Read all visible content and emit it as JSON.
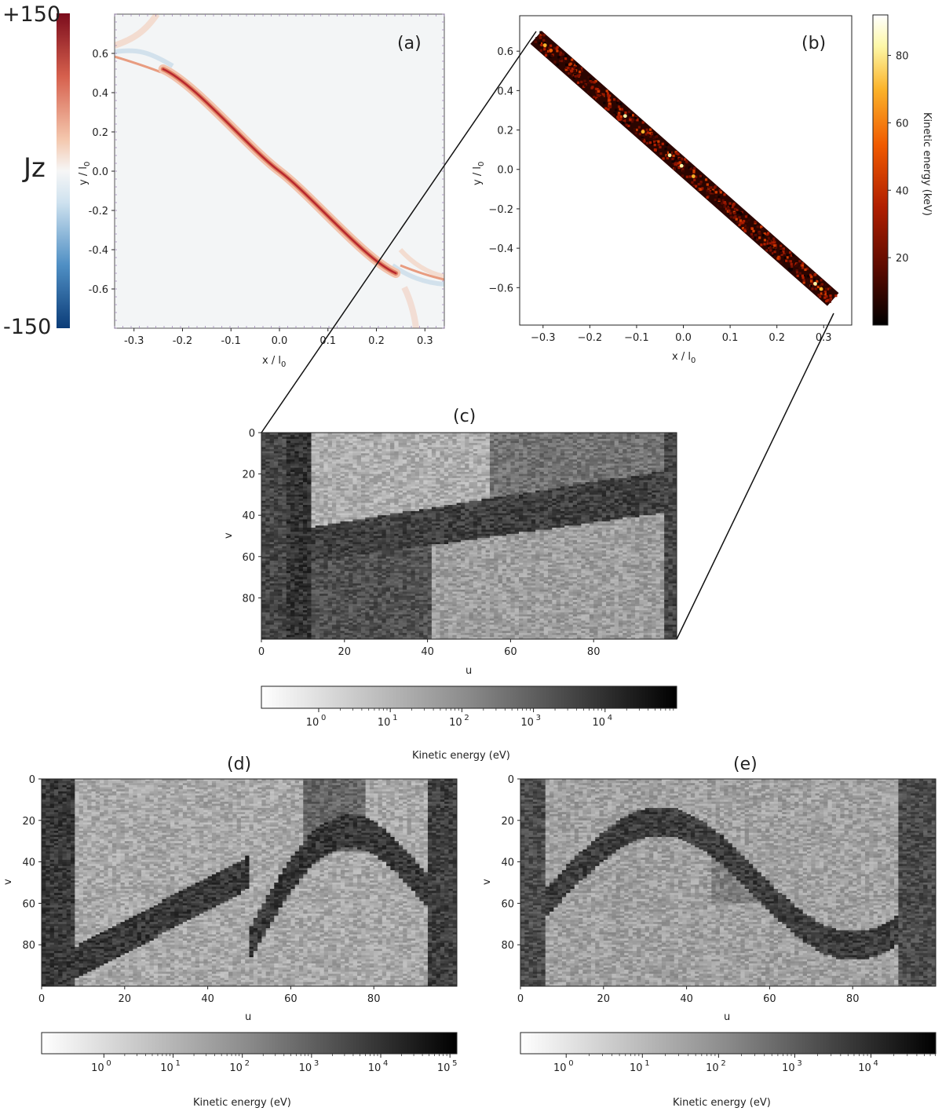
{
  "chart_data": [
    {
      "id": "a",
      "type": "heatmap",
      "panel_label": "(a)",
      "xlabel": "x / l",
      "xlabel_sub": "0",
      "ylabel": "y / l",
      "ylabel_sub": "0",
      "xlim": [
        -0.34,
        0.34
      ],
      "ylim": [
        -0.8,
        0.8
      ],
      "x_ticks": [
        "-0.3",
        "-0.2",
        "-0.1",
        "0.0",
        "0.1",
        "0.2",
        "0.3"
      ],
      "x_tick_values": [
        -0.3,
        -0.2,
        -0.1,
        0.0,
        0.1,
        0.2,
        0.3
      ],
      "y_ticks": [
        "0.6",
        "0.4",
        "0.2",
        "0.0",
        "-0.2",
        "-0.4",
        "-0.6"
      ],
      "y_tick_values": [
        0.6,
        0.4,
        0.2,
        0.0,
        -0.2,
        -0.4,
        -0.6
      ],
      "colorbar": {
        "label": "Jz",
        "max_label": "+150",
        "min_label": "-150",
        "range": [
          -150,
          150
        ],
        "colors": [
          "#0b3c78",
          "#4f8fc4",
          "#cfe2ef",
          "#f6f6f6",
          "#f4c7ad",
          "#d6604d",
          "#7b0c1c"
        ]
      },
      "current_sheet": {
        "from": [
          -0.24,
          0.52
        ],
        "to": [
          0.24,
          -0.52
        ],
        "peak": 150
      }
    },
    {
      "id": "b",
      "type": "scatter",
      "panel_label": "(b)",
      "xlabel": "x / l",
      "xlabel_sub": "0",
      "ylabel": "y / l",
      "ylabel_sub": "0",
      "xlim": [
        -0.35,
        0.36
      ],
      "ylim": [
        -0.79,
        0.78
      ],
      "x_ticks": [
        "−0.3",
        "−0.2",
        "−0.1",
        "0.0",
        "0.1",
        "0.2",
        "0.3"
      ],
      "x_tick_values": [
        -0.3,
        -0.2,
        -0.1,
        0.0,
        0.1,
        0.2,
        0.3
      ],
      "y_ticks": [
        "0.6",
        "0.4",
        "0.2",
        "0.0",
        "−0.2",
        "−0.4",
        "−0.6"
      ],
      "y_tick_values": [
        0.6,
        0.4,
        0.2,
        0.0,
        -0.2,
        -0.4,
        -0.6
      ],
      "band": {
        "from": [
          -0.315,
          0.67
        ],
        "to": [
          0.32,
          -0.66
        ]
      },
      "colorbar": {
        "label": "Kinetic energy (keV)",
        "range": [
          0,
          92
        ],
        "ticks": [
          "20",
          "40",
          "60",
          "80"
        ],
        "tick_values": [
          20,
          40,
          60,
          80
        ],
        "colors": [
          "#000000",
          "#5a0a00",
          "#b01e00",
          "#f05a00",
          "#fbb32a",
          "#fdf8a8",
          "#ffffff"
        ]
      }
    },
    {
      "id": "c",
      "type": "heatmap",
      "panel_label": "(c)",
      "xlabel": "u",
      "ylabel": "v",
      "xlim": [
        0,
        100
      ],
      "ylim": [
        0,
        100
      ],
      "x_ticks": [
        "0",
        "20",
        "40",
        "60",
        "80"
      ],
      "x_tick_values": [
        0,
        20,
        40,
        60,
        80
      ],
      "y_ticks": [
        "0",
        "20",
        "40",
        "60",
        "80"
      ],
      "y_tick_values": [
        0,
        20,
        40,
        60,
        80
      ],
      "colorbar": {
        "label": "Kinetic energy (eV)",
        "scale": "log",
        "range_exp": [
          -0.8,
          5.0
        ],
        "ticks": [
          "10",
          "10",
          "10",
          "10",
          "10"
        ],
        "tick_exps": [
          "0",
          "1",
          "2",
          "3",
          "4"
        ],
        "tick_values": [
          0,
          1,
          2,
          3,
          4
        ]
      }
    },
    {
      "id": "d",
      "type": "heatmap",
      "panel_label": "(d)",
      "xlabel": "u",
      "ylabel": "v",
      "xlim": [
        0,
        100
      ],
      "ylim": [
        0,
        100
      ],
      "x_ticks": [
        "0",
        "20",
        "40",
        "60",
        "80"
      ],
      "x_tick_values": [
        0,
        20,
        40,
        60,
        80
      ],
      "y_ticks": [
        "0",
        "20",
        "40",
        "60",
        "80"
      ],
      "y_tick_values": [
        0,
        20,
        40,
        60,
        80
      ],
      "colorbar": {
        "label": "Kinetic energy (eV)",
        "scale": "log",
        "range_exp": [
          -0.9,
          5.1
        ],
        "ticks": [
          "10",
          "10",
          "10",
          "10",
          "10",
          "10"
        ],
        "tick_exps": [
          "0",
          "1",
          "2",
          "3",
          "4",
          "5"
        ],
        "tick_values": [
          0,
          1,
          2,
          3,
          4,
          5
        ]
      }
    },
    {
      "id": "e",
      "type": "heatmap",
      "panel_label": "(e)",
      "xlabel": "u",
      "ylabel": "v",
      "xlim": [
        0,
        100
      ],
      "ylim": [
        0,
        100
      ],
      "x_ticks": [
        "0",
        "20",
        "40",
        "60",
        "80"
      ],
      "x_tick_values": [
        0,
        20,
        40,
        60,
        80
      ],
      "y_ticks": [
        "0",
        "20",
        "40",
        "60",
        "80"
      ],
      "y_tick_values": [
        0,
        20,
        40,
        60,
        80
      ],
      "colorbar": {
        "label": "Kinetic energy (eV)",
        "scale": "log",
        "range_exp": [
          -0.6,
          4.85
        ],
        "ticks": [
          "10",
          "10",
          "10",
          "10",
          "10"
        ],
        "tick_exps": [
          "0",
          "1",
          "2",
          "3",
          "4"
        ],
        "tick_values": [
          0,
          1,
          2,
          3,
          4
        ]
      }
    }
  ]
}
